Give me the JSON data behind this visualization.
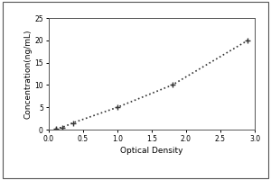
{
  "x_data": [
    0.1,
    0.2,
    0.35,
    1.0,
    1.8,
    2.9
  ],
  "y_data": [
    0.3,
    0.5,
    1.5,
    5.0,
    10.0,
    20.0
  ],
  "xlabel": "Optical Density",
  "ylabel": "Concentration(ng/mL)",
  "xlim": [
    0,
    3.0
  ],
  "ylim": [
    0,
    25
  ],
  "xticks": [
    0,
    0.5,
    1.0,
    1.5,
    2.0,
    2.5,
    3.0
  ],
  "yticks": [
    0,
    5,
    10,
    15,
    20,
    25
  ],
  "line_color": "#333333",
  "marker": "+",
  "marker_size": 5,
  "marker_color": "#333333",
  "line_style": ":",
  "line_width": 1.2,
  "plot_bg": "#ffffff",
  "fig_bg": "#ffffff",
  "tick_labelsize": 5.5,
  "label_fontsize": 6.5,
  "spine_color": "#555555"
}
